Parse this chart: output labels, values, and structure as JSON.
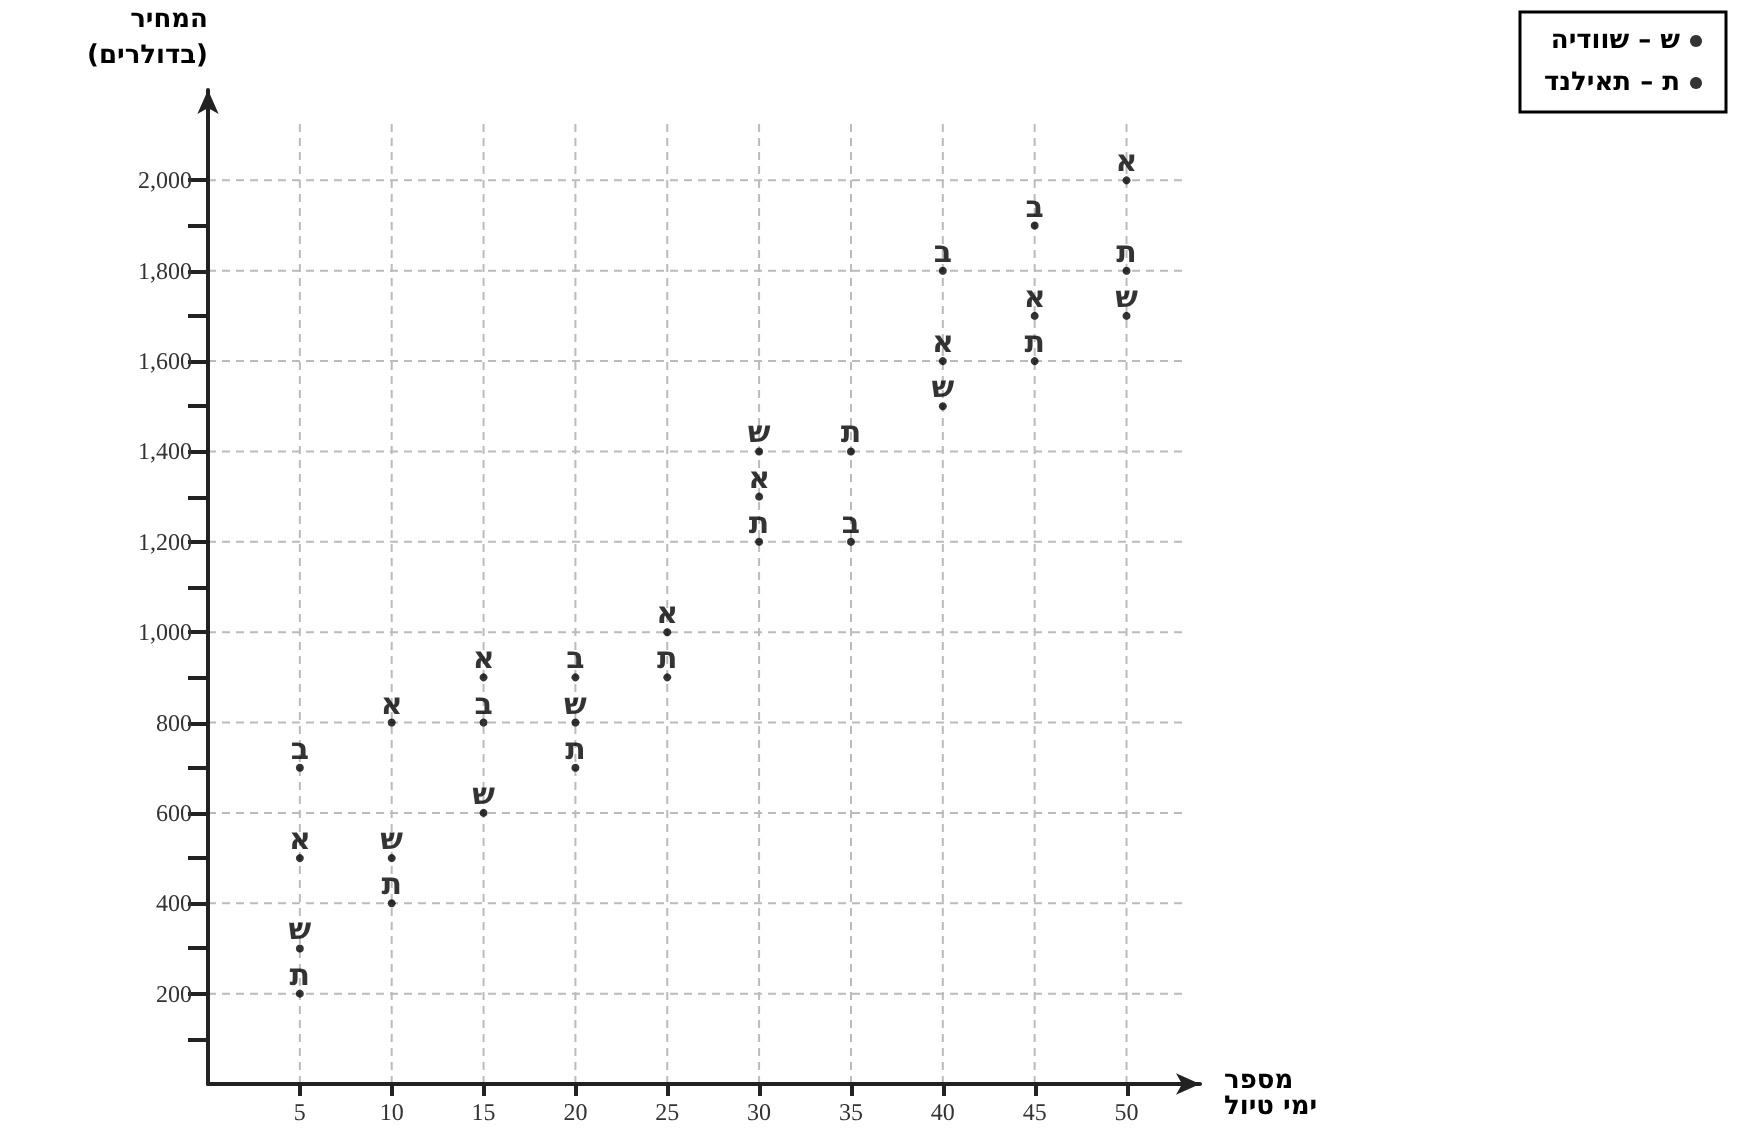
{
  "chart_data": {
    "type": "scatter",
    "xlabel": "מספר\nימי טיול",
    "ylabel": "המחיר\n(בדולרים)",
    "xlim": [
      0,
      54
    ],
    "xticks": [
      5,
      10,
      15,
      20,
      25,
      30,
      35,
      40,
      45,
      50
    ],
    "ylim": [
      0,
      2200
    ],
    "yticks": [
      {
        "value": 100,
        "label": null
      },
      {
        "value": 200,
        "label": "200"
      },
      {
        "value": 300,
        "label": null
      },
      {
        "value": 400,
        "label": "400"
      },
      {
        "value": 500,
        "label": null
      },
      {
        "value": 600,
        "label": "600"
      },
      {
        "value": 700,
        "label": null
      },
      {
        "value": 800,
        "label": "800"
      },
      {
        "value": 900,
        "label": null
      },
      {
        "value": 1000,
        "label": "1,000"
      },
      {
        "value": 1100,
        "label": null
      },
      {
        "value": 1200,
        "label": "1,200"
      },
      {
        "value": 1300,
        "label": null
      },
      {
        "value": 1400,
        "label": "1,400"
      },
      {
        "value": 1500,
        "label": null
      },
      {
        "value": 1600,
        "label": "1,600"
      },
      {
        "value": 1700,
        "label": null
      },
      {
        "value": 1800,
        "label": "1,800"
      },
      {
        "value": 1900,
        "label": null
      },
      {
        "value": 2000,
        "label": "2,000"
      }
    ],
    "grid": true,
    "legend": "top right",
    "marker": "circle",
    "series": [
      {
        "color": "#000000",
        "x": [
          5,
          10,
          15,
          25,
          30,
          40,
          45,
          50
        ],
        "values": [
          500,
          800,
          900,
          1000,
          1300,
          1600,
          1700,
          2000
        ],
        "value_labels": [
          "א",
          "א",
          "א",
          "א",
          "א",
          "א",
          "א",
          "א"
        ]
      },
      {
        "color": "#000000",
        "x": [
          5,
          15,
          20,
          35,
          40,
          45
        ],
        "values": [
          700,
          800,
          900,
          1200,
          1800,
          1900
        ],
        "value_labels": [
          "ב",
          "ב",
          "ב",
          "ב",
          "ב",
          "ב"
        ]
      },
      {
        "name": "ש – שוודיה",
        "color": "#000000",
        "x": [
          5,
          10,
          15,
          20,
          30,
          40,
          50
        ],
        "values": [
          300,
          500,
          600,
          800,
          1400,
          1500,
          1700
        ],
        "value_labels": [
          "ש",
          "ש",
          "ש",
          "ש",
          "ש",
          "ש",
          "ש"
        ]
      },
      {
        "name": "ת – תאילנד",
        "color": "#000000",
        "x": [
          5,
          10,
          20,
          25,
          30,
          35,
          45,
          50
        ],
        "values": [
          200,
          400,
          700,
          900,
          1200,
          1400,
          1600,
          1800
        ],
        "value_labels": [
          "ת",
          "ת",
          "ת",
          "ת",
          "ת",
          "ת",
          "ת",
          "ת"
        ]
      }
    ]
  }
}
